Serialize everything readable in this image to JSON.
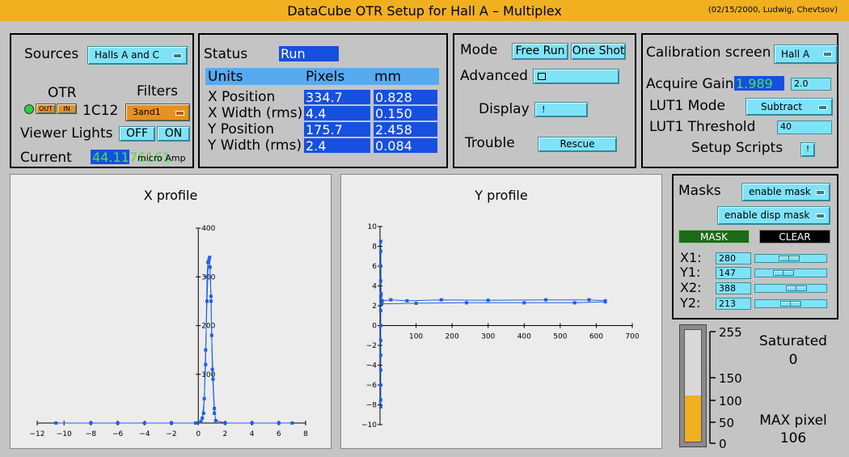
{
  "window": {
    "title": "DataCube  OTR  Setup  for  Hall A – Multiplex",
    "subtitle": "(02/15/2000, Ludwig, Chevtsov)"
  },
  "sources": {
    "label": "Sources",
    "value": "Halls A and C",
    "otr_label": "OTR",
    "filters_label": "Filters",
    "out_label": "OUT",
    "in_label": "IN",
    "otr_id": "1C12",
    "filter_value": "3and1",
    "viewer_lights_label": "Viewer Lights",
    "off_label": "OFF",
    "on_label": "ON",
    "current_label": "Current",
    "current_value": "44.11",
    "current_overlap": "76161",
    "current_unit": "micro Amp"
  },
  "status": {
    "label": "Status",
    "value": "Run",
    "headers": [
      "Units",
      "Pixels",
      "mm"
    ],
    "rows": [
      {
        "name": "X Position",
        "pixels": "334.7",
        "mm": "0.828"
      },
      {
        "name": "X Width (rms)",
        "pixels": "4.4",
        "mm": "0.150"
      },
      {
        "name": "Y Position",
        "pixels": "175.7",
        "mm": "2.458"
      },
      {
        "name": "Y Width (rms)",
        "pixels": "2.4",
        "mm": "0.084"
      }
    ]
  },
  "mode": {
    "label": "Mode",
    "free_run": "Free Run",
    "one_shot": "One Shot",
    "advanced_label": "Advanced",
    "advanced_icon": "window-icon",
    "display_label": "Display",
    "display_button": "!",
    "trouble_label": "Trouble",
    "rescue": "Rescue"
  },
  "calibration": {
    "label": "Calibration screen",
    "hall": "Hall A",
    "acquire_gain_label": "Acquire Gain",
    "acquire_gain_value": "1.989",
    "acquire_gain_input": "2.0",
    "lut1_mode_label": "LUT1 Mode",
    "lut1_mode_value": "Subtract",
    "lut1_threshold_label": "LUT1 Threshold",
    "lut1_threshold_value": "40",
    "setup_scripts_label": "Setup Scripts",
    "setup_scripts_button": "!"
  },
  "masks": {
    "label": "Masks",
    "enable_mask": "enable mask",
    "enable_disp_mask": "enable disp mask",
    "mask_button": "MASK",
    "clear_button": "CLEAR",
    "rows": [
      {
        "label": "X1:",
        "value": "280",
        "level": 0.46
      },
      {
        "label": "Y1:",
        "value": "147",
        "level": 0.35
      },
      {
        "label": "X2:",
        "value": "388",
        "level": 0.61
      },
      {
        "label": "Y2:",
        "value": "213",
        "level": 0.5
      }
    ]
  },
  "histogram": {
    "saturated_label": "Saturated",
    "saturated_value": "0",
    "max_label": "MAX pixel",
    "max_value": "106",
    "scale_labels": [
      "255",
      "150",
      "100",
      "50",
      "0"
    ],
    "fill_level": 106,
    "fill_color": "#f0b020"
  },
  "chart_data": [
    {
      "type": "line",
      "title": "X profile",
      "xlim": [
        -12,
        8
      ],
      "ylim": [
        0,
        400
      ],
      "xticks": [
        -12,
        -10,
        -8,
        -6,
        -4,
        -2,
        0,
        2,
        4,
        6,
        8
      ],
      "yticks": [
        100,
        200,
        300,
        400
      ],
      "series": [
        {
          "color": "#2060e0",
          "x": [
            -10.6,
            -8,
            -6,
            -4,
            -2,
            -0.2,
            0.2,
            0.4,
            0.55,
            0.65,
            0.72,
            0.8,
            0.88,
            0.95,
            1.0,
            1.1,
            1.2,
            1.3,
            2,
            4,
            6,
            7
          ],
          "y": [
            0,
            0,
            0,
            0,
            0,
            0,
            3,
            20,
            120,
            300,
            330,
            335,
            320,
            260,
            180,
            90,
            30,
            5,
            0,
            0,
            0,
            0
          ]
        },
        {
          "color": "#2060e0",
          "x": [
            0.3,
            0.45,
            0.55,
            0.65,
            0.75,
            0.85,
            0.95,
            1.05,
            1.2
          ],
          "y": [
            10,
            50,
            150,
            250,
            330,
            340,
            250,
            110,
            20
          ]
        }
      ]
    },
    {
      "type": "line",
      "title": "Y profile",
      "xlim": [
        0,
        700
      ],
      "ylim": [
        -10,
        10
      ],
      "xticks": [
        100,
        200,
        300,
        400,
        500,
        600,
        700
      ],
      "yticks": [
        -10,
        -8,
        -6,
        -4,
        -2,
        0,
        2,
        4,
        6,
        8,
        10
      ],
      "series": [
        {
          "color": "#2060e0",
          "x": [
            2,
            2,
            2,
            2,
            2,
            2,
            2,
            2,
            2,
            2,
            2,
            2,
            2,
            3,
            6,
            30,
            75,
            170,
            300,
            460,
            580,
            625
          ],
          "y": [
            -8.2,
            -7.5,
            -6,
            -4.5,
            -3,
            -1.5,
            0,
            1.5,
            3,
            4.5,
            6,
            7.5,
            8.5,
            3.2,
            2.5,
            2.6,
            2.5,
            2.6,
            2.55,
            2.6,
            2.6,
            2.5
          ]
        },
        {
          "color": "#2060e0",
          "x": [
            5,
            100,
            240,
            400,
            540,
            625
          ],
          "y": [
            2.2,
            2.25,
            2.3,
            2.3,
            2.3,
            2.4
          ]
        }
      ]
    }
  ]
}
